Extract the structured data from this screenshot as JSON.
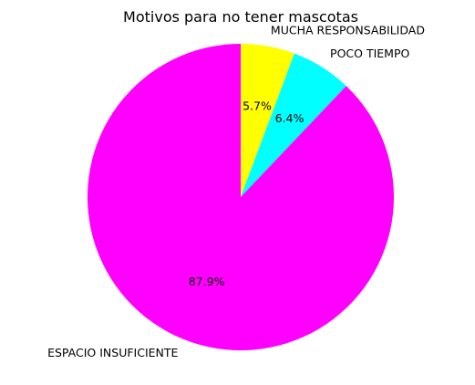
{
  "chart_data": {
    "type": "pie",
    "title": "Motivos para no tener mascotas",
    "start_angle_deg": 90,
    "direction": "clockwise",
    "slices": [
      {
        "label": "MUCHA RESPONSABILIDAD",
        "value": 5.7,
        "pct_label": "5.7%",
        "color": "#ffff00"
      },
      {
        "label": "POCO TIEMPO",
        "value": 6.4,
        "pct_label": "6.4%",
        "color": "#00ffff"
      },
      {
        "label": "ESPACIO INSUFICIENTE",
        "value": 87.9,
        "pct_label": "87.9%",
        "color": "#ff00ff"
      }
    ]
  }
}
